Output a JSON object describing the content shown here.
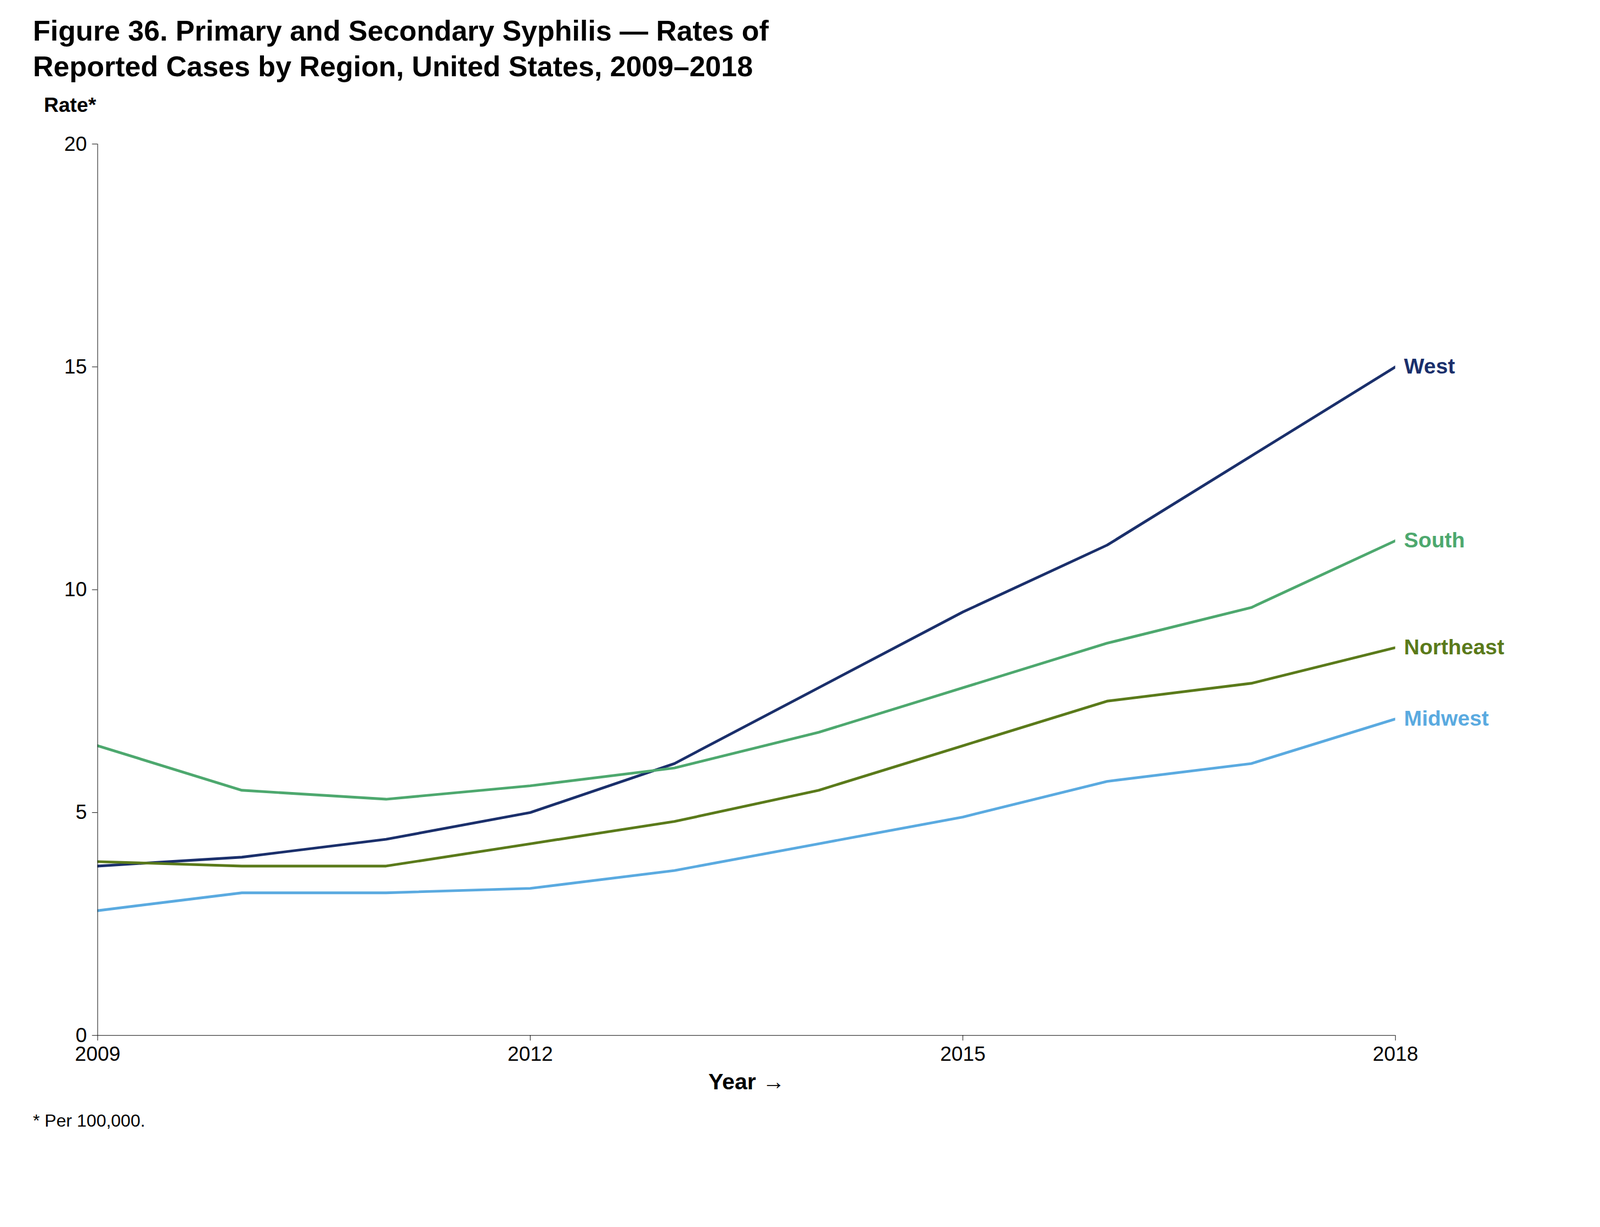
{
  "chart_data": {
    "type": "line",
    "title": "Figure 36. Primary and Secondary Syphilis — Rates of\nReported Cases by Region, United States, 2009–2018",
    "xlabel": "Year",
    "ylabel": "Rate*",
    "annotations": [
      "* Per 100,000."
    ],
    "x": [
      2009,
      2010,
      2011,
      2012,
      2013,
      2014,
      2015,
      2016,
      2017,
      2018
    ],
    "series": [
      {
        "name": "West",
        "color": "#1a2f6b",
        "values": [
          3.8,
          4.0,
          4.4,
          5.0,
          6.1,
          7.8,
          9.5,
          11.0,
          13.0,
          15.0
        ]
      },
      {
        "name": "South",
        "color": "#4da86e",
        "values": [
          6.5,
          5.5,
          5.3,
          5.6,
          6.0,
          6.8,
          7.8,
          8.8,
          9.6,
          11.1
        ]
      },
      {
        "name": "Northeast",
        "color": "#5a7a1a",
        "values": [
          3.9,
          3.8,
          3.8,
          4.3,
          4.8,
          5.5,
          6.5,
          7.5,
          7.9,
          8.7
        ]
      },
      {
        "name": "Midwest",
        "color": "#5aaae0",
        "values": [
          2.8,
          3.2,
          3.2,
          3.3,
          3.7,
          4.3,
          4.9,
          5.7,
          6.1,
          7.1
        ]
      }
    ],
    "xlim": [
      2009,
      2018
    ],
    "xticks": [
      2009,
      2012,
      2015,
      2018
    ],
    "ylim": [
      0,
      20
    ],
    "yticks": [
      0,
      5,
      10,
      15,
      20
    ],
    "grid": false
  }
}
